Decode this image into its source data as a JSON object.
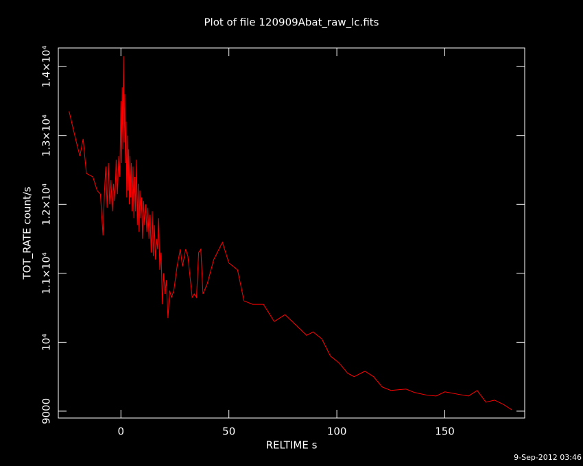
{
  "chart_data": {
    "type": "line",
    "title": "Plot of file 120909Abat_raw_lc.fits",
    "x_label": "RELTIME  s",
    "y_label": "TOT_RATE  count/s",
    "timestamp": "9-Sep-2012 03:46",
    "xlim": [
      -29,
      187
    ],
    "ylim": [
      8900,
      14270
    ],
    "xticks": [
      0,
      50,
      100,
      150
    ],
    "yticks": [
      9000,
      {
        "value": 10000,
        "label": "10⁴"
      },
      {
        "value": 11000,
        "label": "1.1×10⁴"
      },
      {
        "value": 12000,
        "label": "1.2×10⁴"
      },
      {
        "value": 13000,
        "label": "1.3×10⁴"
      },
      {
        "value": 14000,
        "label": "1.4×10⁴"
      }
    ],
    "series": [
      {
        "color": "#ff0000",
        "x": [
          -24,
          -21,
          -19,
          -17.5,
          -16,
          -13,
          -11,
          -9.5,
          -8.3,
          -7.6,
          -7,
          -6.4,
          -5.8,
          -5.2,
          -4.6,
          -4,
          -3.4,
          -2.8,
          -2.2,
          -1.6,
          -1,
          -0.5,
          0,
          0.3,
          0.6,
          0.9,
          1.2,
          1.5,
          1.8,
          2.1,
          2.4,
          2.7,
          3,
          3.3,
          3.6,
          3.9,
          4.2,
          4.5,
          4.8,
          5.2,
          5.6,
          6,
          6.4,
          6.8,
          7.2,
          7.6,
          8,
          8.4,
          8.8,
          9.2,
          9.6,
          10,
          10.5,
          11,
          11.5,
          12,
          12.5,
          13,
          13.5,
          14,
          14.5,
          15,
          15.5,
          16,
          16.5,
          17,
          17.5,
          18,
          18.6,
          19.2,
          19.8,
          20.4,
          21,
          21.8,
          22.6,
          23.4,
          24.5,
          26,
          27.5,
          28.5,
          30,
          31,
          32,
          33,
          34,
          35,
          36,
          37,
          38,
          40,
          43,
          47,
          50,
          54,
          57,
          61,
          66,
          71,
          76,
          81,
          86,
          89,
          93,
          97,
          101,
          105,
          108,
          113,
          117,
          121,
          125,
          132,
          136,
          142,
          146,
          150,
          157,
          161,
          165,
          169,
          173,
          177,
          181
        ],
        "values": [
          13350,
          12950,
          12700,
          12950,
          12450,
          12400,
          12200,
          12150,
          11550,
          12200,
          12550,
          11950,
          12600,
          12000,
          12350,
          11900,
          12300,
          12050,
          12650,
          12150,
          12700,
          12400,
          13500,
          12600,
          13700,
          12800,
          14150,
          12900,
          13600,
          12600,
          13200,
          12100,
          13000,
          12200,
          12800,
          12000,
          12700,
          12100,
          12600,
          11900,
          12550,
          11800,
          12400,
          11900,
          12650,
          11700,
          12300,
          11600,
          12200,
          11800,
          12100,
          11500,
          12050,
          11700,
          12000,
          11600,
          11950,
          11500,
          11850,
          11300,
          11900,
          11250,
          11700,
          11200,
          11500,
          11350,
          11800,
          11050,
          11300,
          10550,
          11000,
          10700,
          10900,
          10350,
          10750,
          10650,
          10750,
          11100,
          11350,
          11100,
          11350,
          11250,
          10950,
          10650,
          10700,
          10650,
          11300,
          11350,
          10700,
          10850,
          11200,
          11450,
          11150,
          11050,
          10600,
          10550,
          10550,
          10300,
          10400,
          10250,
          10100,
          10150,
          10050,
          9800,
          9700,
          9550,
          9500,
          9580,
          9500,
          9350,
          9300,
          9320,
          9270,
          9230,
          9220,
          9280,
          9240,
          9220,
          9300,
          9130,
          9160,
          9100,
          9020
        ]
      }
    ]
  }
}
